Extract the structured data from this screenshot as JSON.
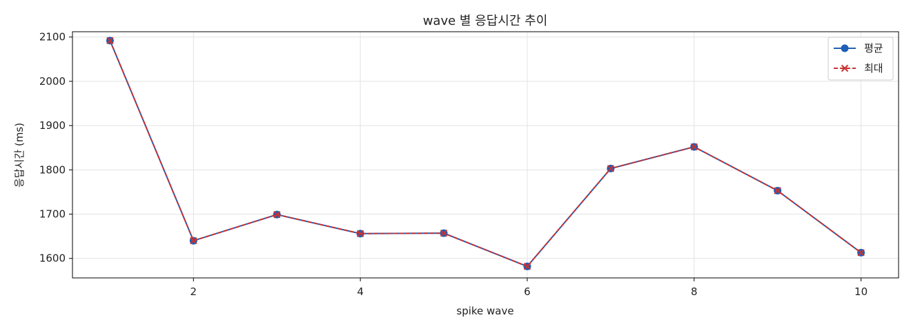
{
  "chart_data": {
    "type": "line",
    "title": "wave 별 응답시간 추이",
    "xlabel": "spike wave",
    "ylabel": "응답시간 (ms)",
    "x": [
      1,
      2,
      3,
      4,
      5,
      6,
      7,
      8,
      9,
      10
    ],
    "xlim": [
      0.55,
      10.45
    ],
    "ylim": [
      1556,
      2112
    ],
    "xticks": [
      2,
      4,
      6,
      8,
      10
    ],
    "yticks": [
      1600,
      1700,
      1800,
      1900,
      2000,
      2100
    ],
    "grid": true,
    "legend_position": "top-right",
    "series": [
      {
        "name": "평균",
        "values": [
          2092,
          1640,
          1699,
          1656,
          1657,
          1582,
          1803,
          1852,
          1753,
          1613
        ],
        "color": "#1f5fb4",
        "line_style": "solid",
        "marker": "circle"
      },
      {
        "name": "최대",
        "values": [
          2092,
          1640,
          1699,
          1656,
          1657,
          1582,
          1803,
          1852,
          1753,
          1613
        ],
        "color": "#c83232",
        "line_style": "dashed",
        "marker": "x"
      }
    ]
  }
}
